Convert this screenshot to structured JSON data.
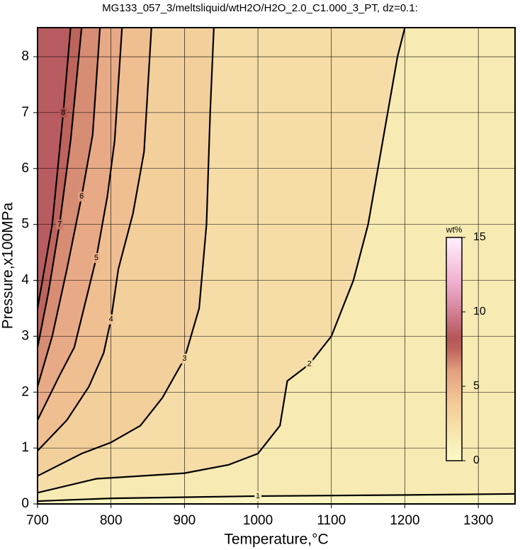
{
  "chart_data": {
    "type": "contour",
    "title": "MG133_057_3/meltsliquid/wtH2O/H2O_2.0_C1.000_3_PT, dz=0.1:",
    "x_label": "Temperature,°C",
    "y_label": "Pressure,x100MPa",
    "xlim": [
      700,
      1350
    ],
    "ylim": [
      0,
      8.52
    ],
    "xticks": [
      700,
      800,
      900,
      1000,
      1100,
      1200,
      1300
    ],
    "yticks": [
      0,
      1,
      2,
      3,
      4,
      5,
      6,
      7,
      8
    ],
    "grid": true,
    "contours": [
      {
        "level": 1,
        "x": [
          700,
          800,
          1000,
          1200,
          1350
        ],
        "y": [
          0.05,
          0.1,
          0.14,
          0.16,
          0.18
        ]
      },
      {
        "level": 2,
        "x": [
          700,
          780,
          900,
          960,
          1000,
          1030,
          1040,
          1070,
          1100,
          1130,
          1150,
          1170,
          1190,
          1200
        ],
        "y": [
          0.2,
          0.45,
          0.55,
          0.7,
          0.9,
          1.4,
          2.2,
          2.5,
          3.0,
          4.0,
          5.0,
          6.5,
          8.0,
          8.52
        ]
      },
      {
        "level": 3,
        "x": [
          700,
          760,
          800,
          840,
          870,
          900,
          920,
          930,
          935,
          940
        ],
        "y": [
          0.5,
          0.9,
          1.1,
          1.4,
          1.9,
          2.6,
          3.5,
          5.0,
          7.0,
          8.52
        ]
      },
      {
        "level": 4,
        "x": [
          700,
          740,
          770,
          790,
          800,
          810,
          830,
          845,
          855
        ],
        "y": [
          0.95,
          1.5,
          2.1,
          2.7,
          3.3,
          4.2,
          5.2,
          6.3,
          8.52
        ]
      },
      {
        "level": 5,
        "x": [
          700,
          730,
          750,
          765,
          780,
          795,
          805,
          815
        ],
        "y": [
          1.5,
          2.3,
          2.8,
          3.6,
          4.4,
          5.5,
          6.5,
          8.52
        ]
      },
      {
        "level": 6,
        "x": [
          700,
          720,
          740,
          760,
          775,
          785
        ],
        "y": [
          2.1,
          3.0,
          4.2,
          5.5,
          6.6,
          8.52
        ]
      },
      {
        "level": 7,
        "x": [
          700,
          715,
          730,
          745,
          760
        ],
        "y": [
          2.8,
          3.8,
          5.0,
          6.5,
          8.52
        ]
      },
      {
        "level": 8,
        "x": [
          700,
          720,
          735,
          745
        ],
        "y": [
          3.5,
          5.0,
          7.0,
          8.52
        ]
      }
    ],
    "colorbar": {
      "label": "wt%",
      "lim": [
        0,
        15
      ],
      "ticks": [
        0,
        5,
        10,
        15
      ]
    }
  }
}
